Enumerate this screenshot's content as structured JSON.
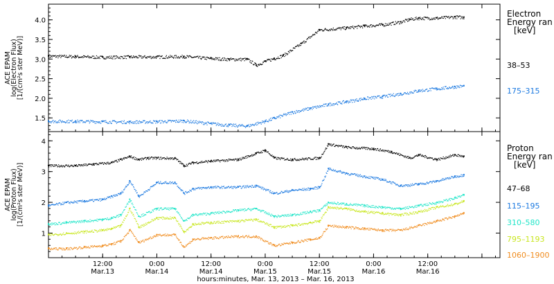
{
  "chart_data": [
    {
      "type": "scatter",
      "ylabel_lines": [
        "ACE EPAM",
        "log(Electron Flux)",
        "[1/(cm²s ster MeV)]"
      ],
      "ylim": [
        1.15,
        4.4
      ],
      "yticks": [
        1.5,
        2.0,
        2.5,
        3.0,
        3.5,
        4.0
      ],
      "ytick_labels": [
        "1.5",
        "2.0",
        "2.5",
        "3.0",
        "3.5",
        "4.0"
      ],
      "legend_title": [
        "Electron",
        "Energy ran",
        "[keV]"
      ],
      "series": [
        {
          "name": "38–53",
          "color": "#000000",
          "x": [
            0,
            6,
            12,
            18,
            24,
            30,
            36,
            40,
            44,
            46,
            48,
            50,
            52,
            56,
            60,
            66,
            70,
            74,
            78,
            80,
            82,
            86,
            90,
            92
          ],
          "y": [
            3.08,
            3.07,
            3.05,
            3.06,
            3.06,
            3.07,
            3.02,
            3.0,
            3.0,
            2.85,
            2.95,
            3.02,
            3.1,
            3.4,
            3.75,
            3.8,
            3.85,
            3.88,
            3.95,
            4.02,
            4.05,
            4.05,
            4.08,
            4.07
          ]
        },
        {
          "name": "175–315",
          "color": "#1a78e0",
          "x": [
            0,
            6,
            12,
            18,
            24,
            30,
            36,
            40,
            44,
            48,
            50,
            54,
            58,
            62,
            66,
            70,
            74,
            78,
            82,
            86,
            90,
            92
          ],
          "y": [
            1.42,
            1.42,
            1.41,
            1.4,
            1.41,
            1.43,
            1.36,
            1.32,
            1.3,
            1.42,
            1.5,
            1.65,
            1.75,
            1.85,
            1.92,
            2.0,
            2.05,
            2.12,
            2.2,
            2.25,
            2.3,
            2.32
          ]
        }
      ]
    },
    {
      "type": "scatter",
      "ylabel_lines": [
        "ACE EPAM",
        "log(Proton Flux)",
        "[1/(cm²s ster MeV)]"
      ],
      "ylim": [
        0.2,
        4.3
      ],
      "yticks": [
        1,
        2,
        3,
        4
      ],
      "ytick_labels": [
        "1",
        "2",
        "3",
        "4"
      ],
      "legend_title": [
        "Proton",
        "Energy ran",
        "[keV]"
      ],
      "series": [
        {
          "name": "47–68",
          "color": "#000000",
          "x": [
            0,
            6,
            10,
            14,
            16,
            18,
            20,
            22,
            24,
            28,
            30,
            32,
            36,
            42,
            46,
            48,
            50,
            54,
            60,
            62,
            66,
            72,
            76,
            80,
            82,
            86,
            90,
            92
          ],
          "y": [
            3.2,
            3.2,
            3.25,
            3.3,
            3.4,
            3.5,
            3.4,
            3.45,
            3.45,
            3.44,
            3.2,
            3.3,
            3.35,
            3.4,
            3.6,
            3.7,
            3.45,
            3.4,
            3.45,
            3.9,
            3.8,
            3.75,
            3.65,
            3.45,
            3.55,
            3.4,
            3.55,
            3.5
          ]
        },
        {
          "name": "115–195",
          "color": "#1a78e0",
          "x": [
            0,
            4,
            8,
            12,
            14,
            16,
            18,
            20,
            24,
            28,
            30,
            32,
            36,
            42,
            46,
            50,
            54,
            58,
            60,
            62,
            66,
            70,
            74,
            78,
            82,
            86,
            90,
            92
          ],
          "y": [
            1.9,
            2.0,
            2.05,
            2.1,
            2.2,
            2.3,
            2.7,
            2.2,
            2.65,
            2.65,
            2.3,
            2.45,
            2.5,
            2.5,
            2.55,
            2.3,
            2.4,
            2.45,
            2.5,
            3.1,
            2.95,
            2.85,
            2.75,
            2.55,
            2.6,
            2.7,
            2.85,
            2.9
          ]
        },
        {
          "name": "310–580",
          "color": "#1ee5c8",
          "x": [
            0,
            4,
            8,
            12,
            14,
            16,
            18,
            20,
            24,
            28,
            30,
            32,
            36,
            42,
            46,
            50,
            54,
            58,
            60,
            62,
            66,
            70,
            74,
            78,
            82,
            86,
            90,
            92
          ],
          "y": [
            1.3,
            1.35,
            1.4,
            1.45,
            1.5,
            1.6,
            2.1,
            1.55,
            1.8,
            1.8,
            1.4,
            1.6,
            1.65,
            1.75,
            1.8,
            1.55,
            1.6,
            1.7,
            1.75,
            2.0,
            1.95,
            1.9,
            1.85,
            1.8,
            1.9,
            2.0,
            2.15,
            2.25
          ]
        },
        {
          "name": "795–1193",
          "color": "#c8e61e",
          "x": [
            0,
            4,
            8,
            12,
            14,
            16,
            18,
            20,
            24,
            28,
            30,
            32,
            36,
            42,
            46,
            50,
            54,
            58,
            60,
            62,
            66,
            70,
            74,
            78,
            82,
            86,
            90,
            92
          ],
          "y": [
            0.95,
            1.0,
            1.05,
            1.1,
            1.15,
            1.25,
            1.8,
            1.2,
            1.5,
            1.5,
            1.05,
            1.3,
            1.35,
            1.4,
            1.45,
            1.2,
            1.25,
            1.35,
            1.4,
            1.85,
            1.8,
            1.7,
            1.65,
            1.6,
            1.7,
            1.85,
            1.95,
            2.05
          ]
        },
        {
          "name": "1060–1900",
          "color": "#f08c1e",
          "x": [
            0,
            4,
            8,
            12,
            14,
            16,
            18,
            20,
            24,
            28,
            30,
            32,
            36,
            42,
            46,
            50,
            54,
            58,
            60,
            62,
            66,
            70,
            74,
            78,
            82,
            86,
            90,
            92
          ],
          "y": [
            0.5,
            0.5,
            0.55,
            0.6,
            0.65,
            0.75,
            1.1,
            0.7,
            0.95,
            0.95,
            0.55,
            0.8,
            0.85,
            0.9,
            0.9,
            0.6,
            0.7,
            0.8,
            0.85,
            1.25,
            1.2,
            1.15,
            1.1,
            1.1,
            1.25,
            1.4,
            1.55,
            1.65
          ]
        }
      ]
    }
  ],
  "x_axis": {
    "xlim": [
      0,
      100
    ],
    "ticks": [
      12,
      24,
      36,
      48,
      60,
      72,
      84,
      96
    ],
    "tick_time_labels": [
      "12:00",
      "0:00",
      "12:00",
      "0:00",
      "12:00",
      "0:00",
      "12:00"
    ],
    "tick_date_labels": [
      "Mar.13",
      "Mar.14",
      "Mar.14",
      "Mar.15",
      "Mar.15",
      "Mar.16",
      "Mar.16"
    ],
    "label_ticks": [
      12,
      24,
      36,
      48,
      60,
      72,
      84
    ],
    "xlabel": "hours:minutes, Mar. 13, 2013 – Mar. 16, 2013"
  }
}
